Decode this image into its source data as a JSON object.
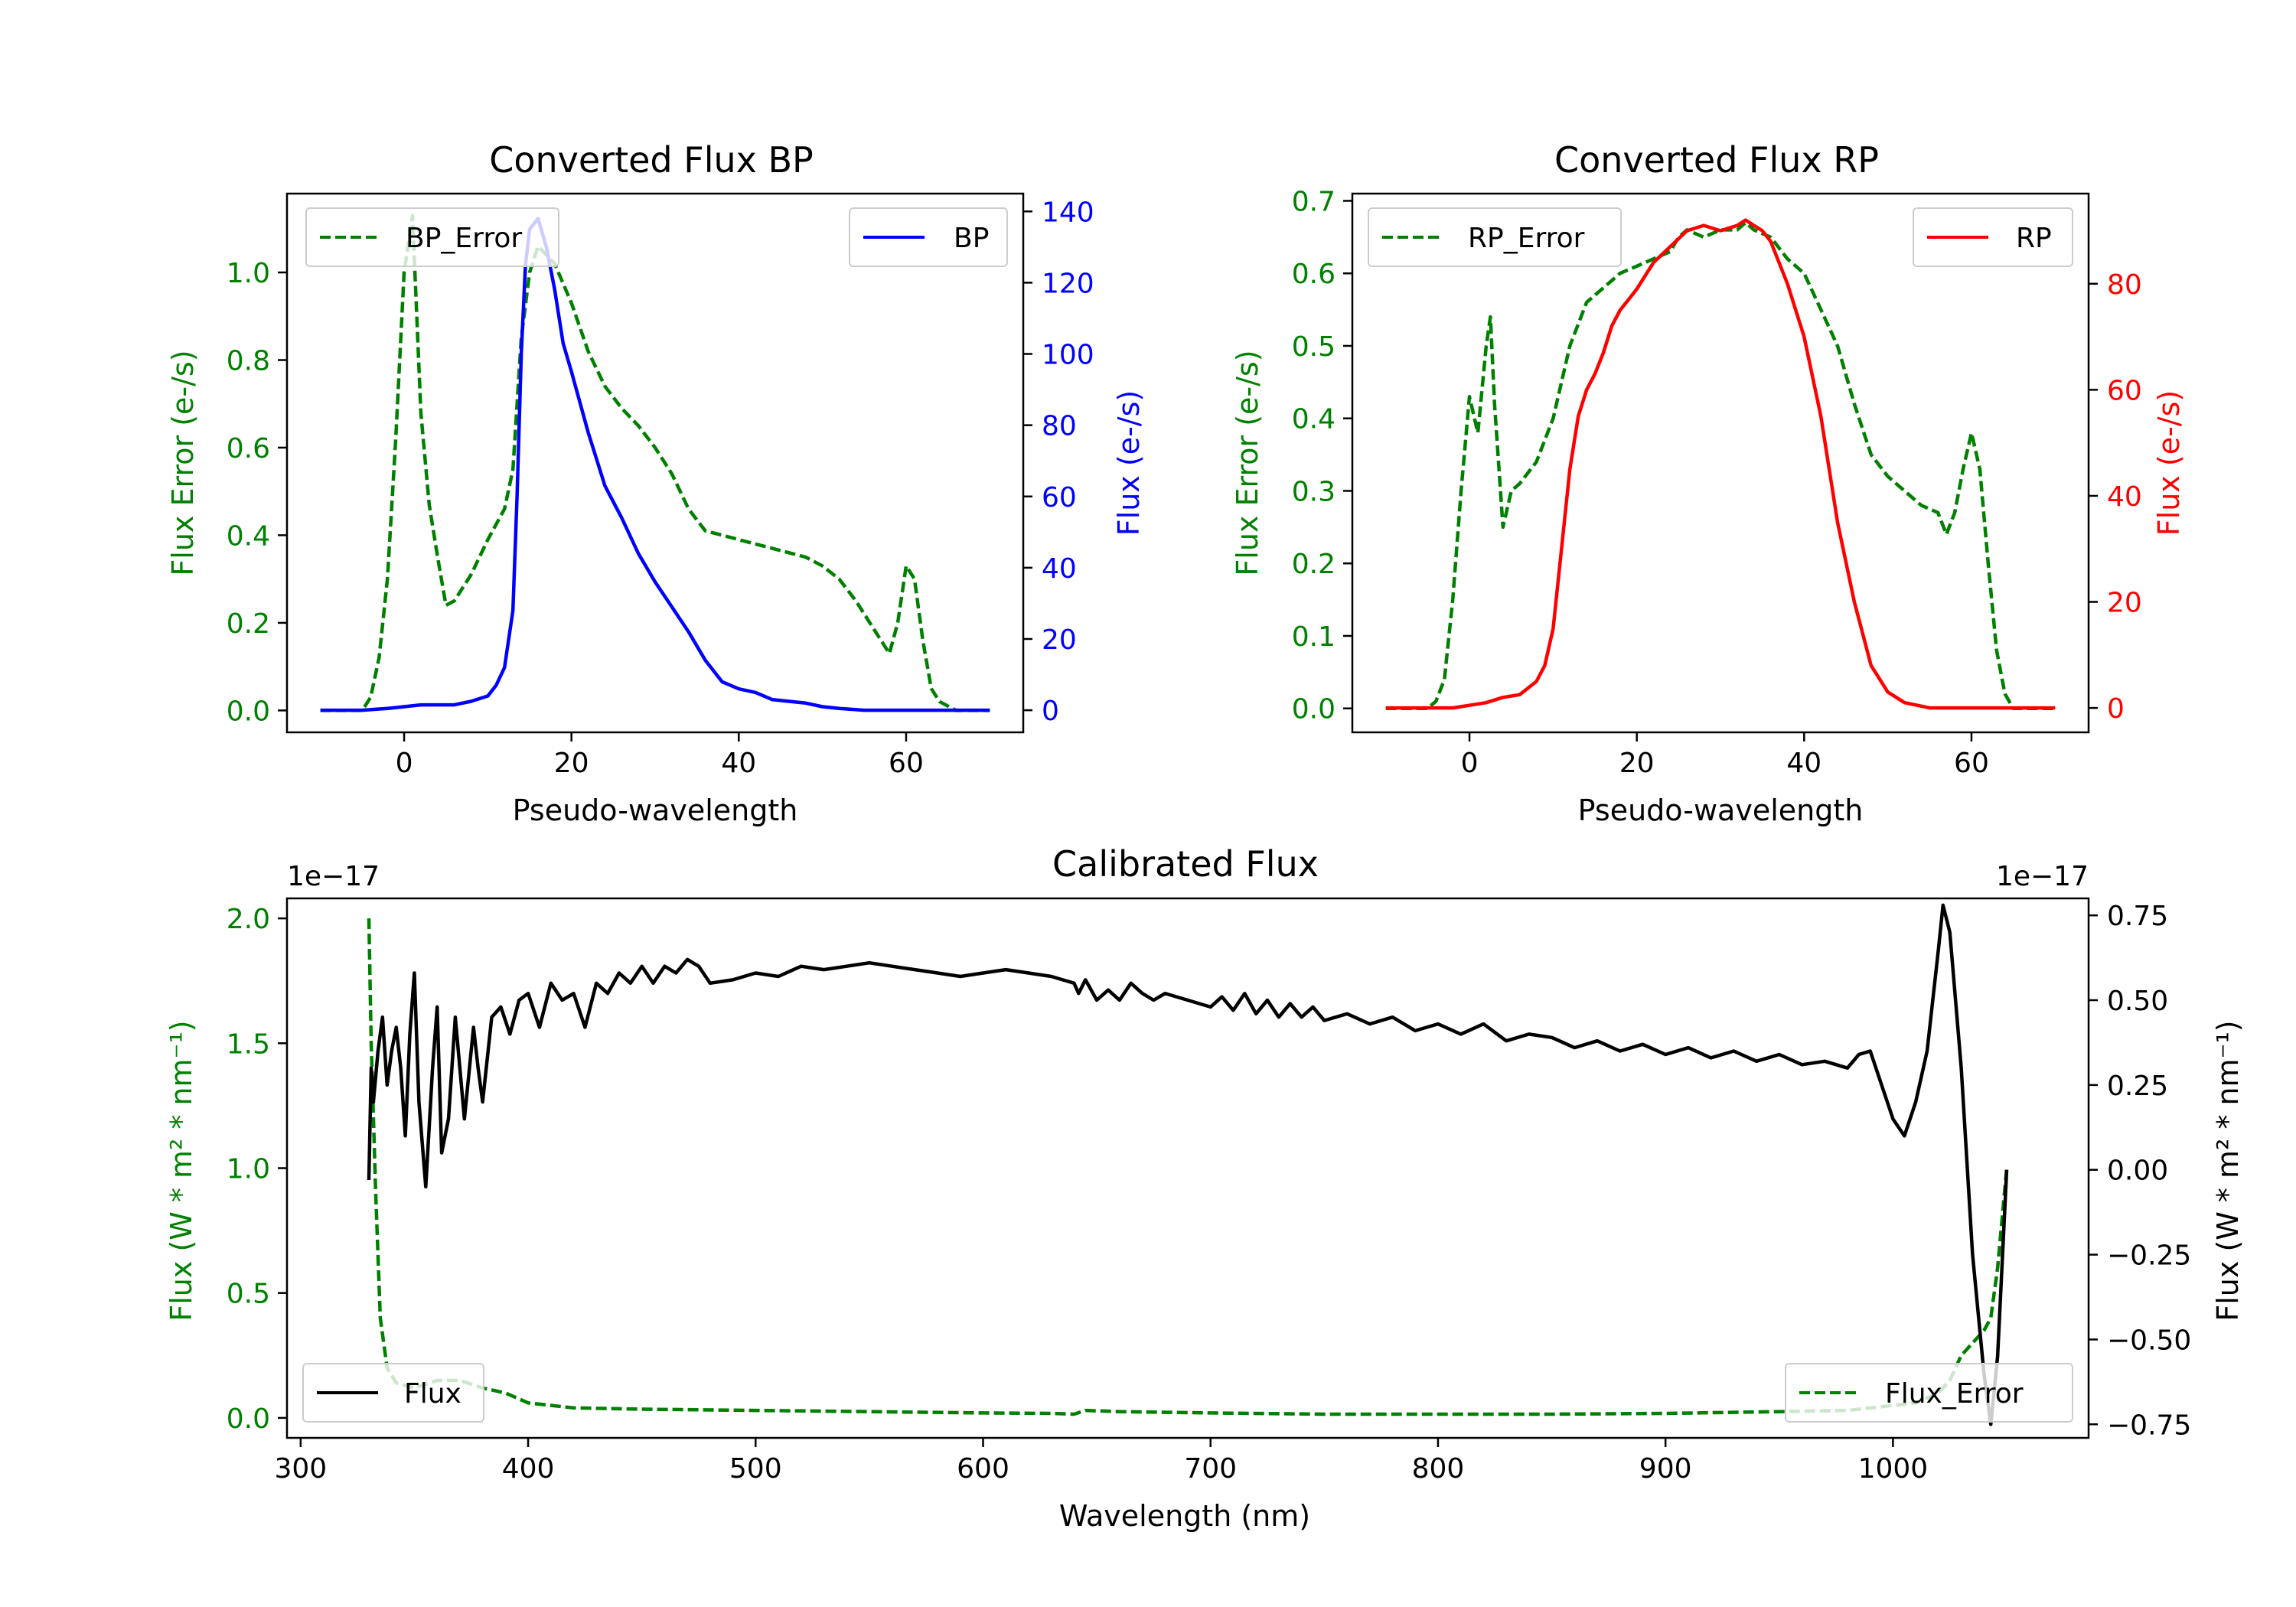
{
  "colors": {
    "error": "#008000",
    "bp": "#0000ff",
    "rp": "#ff0000",
    "flux": "#000000"
  },
  "chart_data": [
    {
      "id": "bp",
      "type": "line",
      "title": "Converted Flux BP",
      "xlabel": "Pseudo-wavelength",
      "ylabel_left": "Flux Error (e-/s)",
      "ylabel_right": "Flux (e-/s)",
      "xlim": [
        -14,
        74
      ],
      "ylim_left": [
        -0.05,
        1.18
      ],
      "ylim_right": [
        -6.2,
        145
      ],
      "xticks": [
        0,
        20,
        40,
        60
      ],
      "yticks_left": [
        0.0,
        0.2,
        0.4,
        0.6,
        0.8,
        1.0
      ],
      "yticks_right": [
        0,
        20,
        40,
        60,
        80,
        100,
        120,
        140
      ],
      "series": [
        {
          "name": "BP_Error",
          "axis": "left",
          "style": "dashed",
          "color": "#008000",
          "x": [
            -10,
            -5,
            -4,
            -3,
            -2,
            -1,
            0,
            1,
            2,
            3,
            4,
            5,
            6,
            8,
            10,
            12,
            13,
            14,
            15,
            16,
            18,
            20,
            22,
            24,
            26,
            28,
            30,
            32,
            34,
            36,
            38,
            40,
            42,
            44,
            46,
            48,
            50,
            52,
            54,
            56,
            57,
            58,
            59,
            60,
            61,
            62,
            63,
            64,
            65,
            66,
            67,
            68,
            69,
            70
          ],
          "values": [
            0,
            0,
            0.03,
            0.12,
            0.3,
            0.62,
            1.0,
            1.13,
            0.68,
            0.47,
            0.35,
            0.24,
            0.25,
            0.31,
            0.39,
            0.46,
            0.55,
            0.85,
            1.0,
            1.06,
            1.02,
            0.93,
            0.82,
            0.74,
            0.69,
            0.65,
            0.6,
            0.54,
            0.46,
            0.41,
            0.4,
            0.39,
            0.38,
            0.37,
            0.36,
            0.35,
            0.33,
            0.3,
            0.25,
            0.19,
            0.16,
            0.13,
            0.2,
            0.33,
            0.3,
            0.16,
            0.05,
            0.02,
            0.01,
            0,
            0,
            0,
            0,
            0
          ]
        },
        {
          "name": "BP",
          "axis": "right",
          "style": "solid",
          "color": "#0000ff",
          "x": [
            -10,
            -5,
            -2,
            0,
            2,
            4,
            6,
            8,
            10,
            11,
            12,
            13,
            13.5,
            14,
            14.5,
            15,
            16,
            17,
            18,
            19,
            20,
            22,
            24,
            26,
            28,
            30,
            32,
            34,
            36,
            38,
            40,
            42,
            44,
            46,
            48,
            50,
            52,
            55,
            60,
            65,
            70
          ],
          "values": [
            0,
            0,
            0.5,
            1,
            1.5,
            1.5,
            1.5,
            2.5,
            4,
            7,
            12,
            28,
            60,
            100,
            125,
            135,
            138,
            130,
            118,
            103,
            95,
            78,
            63,
            54,
            44,
            36,
            29,
            22,
            14,
            8,
            6,
            5,
            3,
            2.5,
            2,
            1,
            0.5,
            0,
            0,
            0,
            0
          ]
        }
      ]
    },
    {
      "id": "rp",
      "type": "line",
      "title": "Converted Flux RP",
      "xlabel": "Pseudo-wavelength",
      "ylabel_left": "Flux Error (e-/s)",
      "ylabel_right": "Flux (e-/s)",
      "xlim": [
        -14,
        74
      ],
      "ylim_left": [
        -0.033,
        0.71
      ],
      "ylim_right": [
        -4.6,
        97
      ],
      "xticks": [
        0,
        20,
        40,
        60
      ],
      "yticks_left": [
        0.0,
        0.1,
        0.2,
        0.3,
        0.4,
        0.5,
        0.6,
        0.7
      ],
      "yticks_right": [
        0,
        20,
        40,
        60,
        80
      ],
      "series": [
        {
          "name": "RP_Error",
          "axis": "left",
          "style": "dashed",
          "color": "#008000",
          "x": [
            -10,
            -5,
            -4,
            -3,
            -2,
            -1,
            0,
            1,
            2,
            2.5,
            3,
            4,
            5,
            6,
            8,
            10,
            12,
            14,
            16,
            18,
            20,
            22,
            24,
            25,
            26,
            28,
            30,
            32,
            33,
            34,
            36,
            38,
            40,
            42,
            44,
            46,
            48,
            50,
            52,
            54,
            56,
            57,
            58,
            59,
            60,
            61,
            62,
            63,
            64,
            65,
            66,
            67,
            68,
            70
          ],
          "values": [
            0,
            0,
            0.01,
            0.04,
            0.15,
            0.3,
            0.43,
            0.38,
            0.5,
            0.54,
            0.42,
            0.25,
            0.3,
            0.31,
            0.34,
            0.4,
            0.5,
            0.56,
            0.58,
            0.6,
            0.61,
            0.62,
            0.63,
            0.65,
            0.66,
            0.65,
            0.66,
            0.66,
            0.67,
            0.66,
            0.65,
            0.62,
            0.6,
            0.55,
            0.5,
            0.42,
            0.35,
            0.32,
            0.3,
            0.28,
            0.27,
            0.24,
            0.27,
            0.33,
            0.38,
            0.33,
            0.2,
            0.08,
            0.02,
            0,
            0,
            0,
            0,
            0
          ]
        },
        {
          "name": "RP",
          "axis": "right",
          "style": "solid",
          "color": "#ff0000",
          "x": [
            -10,
            -5,
            -2,
            0,
            2,
            4,
            6,
            8,
            9,
            10,
            11,
            12,
            13,
            14,
            15,
            16,
            17,
            18,
            19,
            20,
            22,
            24,
            26,
            28,
            30,
            32,
            33,
            34,
            35,
            36,
            38,
            40,
            42,
            44,
            46,
            48,
            50,
            52,
            55,
            60,
            65,
            70
          ],
          "values": [
            0,
            0,
            0,
            0.5,
            1,
            2,
            2.5,
            5,
            8,
            15,
            30,
            45,
            55,
            60,
            63,
            67,
            72,
            75,
            77,
            79,
            84,
            87,
            90,
            91,
            90,
            91,
            92,
            91,
            90,
            88,
            80,
            70,
            55,
            35,
            20,
            8,
            3,
            1,
            0,
            0,
            0,
            0
          ]
        }
      ]
    },
    {
      "id": "calibrated",
      "type": "line",
      "title": "Calibrated Flux",
      "xlabel": "Wavelength (nm)",
      "ylabel_left": "Flux (W * m² * nm⁻¹)",
      "ylabel_right": "Flux (W * m² * nm⁻¹)",
      "offset_left": "1e−17",
      "offset_right": "1e−17",
      "xlim": [
        294,
        1086
      ],
      "ylim_left": [
        -0.08,
        2.08
      ],
      "ylim_right": [
        -0.79,
        0.8
      ],
      "xticks": [
        300,
        400,
        500,
        600,
        700,
        800,
        900,
        1000
      ],
      "yticks_left": [
        0.0,
        0.5,
        1.0,
        1.5,
        2.0
      ],
      "yticks_right": [
        -0.75,
        -0.5,
        -0.25,
        0.0,
        0.25,
        0.5,
        0.75
      ],
      "series": [
        {
          "name": "Flux_Error",
          "axis": "left",
          "style": "dashed",
          "color": "#008000",
          "x": [
            330,
            331,
            333,
            335,
            338,
            342,
            350,
            360,
            370,
            380,
            390,
            400,
            420,
            450,
            500,
            550,
            600,
            630,
            640,
            645,
            660,
            700,
            750,
            800,
            850,
            900,
            950,
            980,
            1000,
            1010,
            1020,
            1025,
            1030,
            1035,
            1040,
            1043,
            1046,
            1050
          ],
          "values": [
            2.0,
            1.5,
            0.9,
            0.4,
            0.2,
            0.14,
            0.12,
            0.15,
            0.15,
            0.12,
            0.1,
            0.06,
            0.04,
            0.035,
            0.03,
            0.025,
            0.02,
            0.018,
            0.015,
            0.03,
            0.025,
            0.02,
            0.015,
            0.015,
            0.015,
            0.018,
            0.025,
            0.03,
            0.05,
            0.06,
            0.1,
            0.15,
            0.25,
            0.3,
            0.35,
            0.4,
            0.6,
            1.0
          ]
        },
        {
          "name": "Flux",
          "axis": "right",
          "style": "solid",
          "color": "#000000",
          "x": [
            330,
            331,
            332,
            334,
            336,
            338,
            340,
            342,
            344,
            346,
            348,
            350,
            352,
            355,
            358,
            360,
            362,
            365,
            368,
            372,
            376,
            378,
            380,
            384,
            388,
            392,
            396,
            400,
            405,
            410,
            415,
            420,
            425,
            430,
            435,
            440,
            445,
            450,
            455,
            460,
            465,
            470,
            475,
            480,
            490,
            500,
            510,
            520,
            530,
            540,
            550,
            560,
            570,
            580,
            590,
            600,
            610,
            620,
            630,
            640,
            642,
            645,
            650,
            655,
            660,
            665,
            670,
            675,
            680,
            690,
            700,
            705,
            710,
            715,
            720,
            725,
            730,
            735,
            740,
            745,
            750,
            760,
            770,
            780,
            790,
            800,
            810,
            820,
            830,
            840,
            850,
            860,
            870,
            880,
            890,
            900,
            910,
            920,
            930,
            940,
            950,
            960,
            970,
            980,
            985,
            990,
            1000,
            1005,
            1010,
            1015,
            1020,
            1022,
            1025,
            1030,
            1035,
            1040,
            1043,
            1046,
            1050
          ],
          "values": [
            -0.03,
            0.3,
            0.2,
            0.35,
            0.45,
            0.25,
            0.35,
            0.42,
            0.3,
            0.1,
            0.4,
            0.58,
            0.2,
            -0.05,
            0.3,
            0.48,
            0.05,
            0.15,
            0.45,
            0.15,
            0.42,
            0.3,
            0.2,
            0.45,
            0.48,
            0.4,
            0.5,
            0.52,
            0.42,
            0.55,
            0.5,
            0.52,
            0.42,
            0.55,
            0.52,
            0.58,
            0.55,
            0.6,
            0.55,
            0.6,
            0.58,
            0.62,
            0.6,
            0.55,
            0.56,
            0.58,
            0.57,
            0.6,
            0.59,
            0.6,
            0.61,
            0.6,
            0.59,
            0.58,
            0.57,
            0.58,
            0.59,
            0.58,
            0.57,
            0.55,
            0.52,
            0.56,
            0.5,
            0.53,
            0.5,
            0.55,
            0.52,
            0.5,
            0.52,
            0.5,
            0.48,
            0.51,
            0.47,
            0.52,
            0.46,
            0.5,
            0.45,
            0.49,
            0.45,
            0.48,
            0.44,
            0.46,
            0.43,
            0.45,
            0.41,
            0.43,
            0.4,
            0.43,
            0.38,
            0.4,
            0.39,
            0.36,
            0.38,
            0.35,
            0.37,
            0.34,
            0.36,
            0.33,
            0.35,
            0.32,
            0.34,
            0.31,
            0.32,
            0.3,
            0.34,
            0.35,
            0.15,
            0.1,
            0.2,
            0.35,
            0.65,
            0.78,
            0.7,
            0.3,
            -0.25,
            -0.6,
            -0.75,
            -0.55,
            0.0
          ]
        }
      ]
    }
  ]
}
